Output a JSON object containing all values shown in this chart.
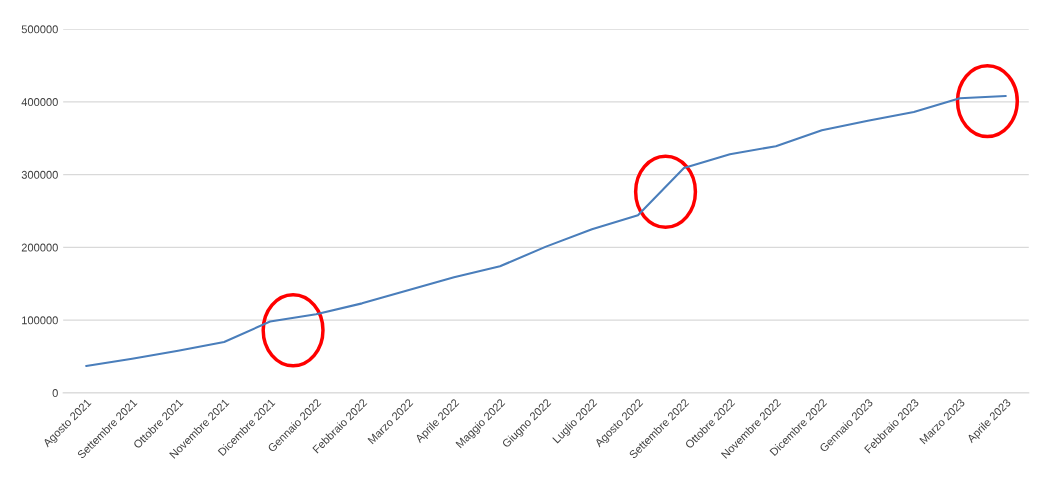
{
  "chart_data": {
    "type": "line",
    "categories": [
      "Agosto 2021",
      "Settembre 2021",
      "Ottobre 2021",
      "Novembre 2021",
      "Dicembre 2021",
      "Gennaio 2022",
      "Febbraio 2022",
      "Marzo 2022",
      "Aprile 2022",
      "Maggio 2022",
      "Giugno 2022",
      "Luglio 2022",
      "Agosto 2022",
      "Settembre 2022",
      "Ottobre 2022",
      "Novembre 2022",
      "Dicembre 2022",
      "Gennaio 2023",
      "Febbraio 2023",
      "Marzo 2023",
      "Aprile 2023"
    ],
    "series": [
      {
        "color": "#4a7ebb",
        "values": [
          37000,
          47000,
          58000,
          70000,
          98000,
          108000,
          123000,
          141000,
          159000,
          174000,
          201000,
          225000,
          244000,
          309000,
          328000,
          339000,
          361000,
          374000,
          386000,
          405000,
          408000
        ]
      }
    ],
    "ylim": [
      0,
      500000
    ],
    "yticks": [
      0,
      100000,
      200000,
      300000,
      400000,
      500000
    ],
    "grid": "y",
    "legend": false,
    "marker": "none",
    "line_style": "solid"
  }
}
